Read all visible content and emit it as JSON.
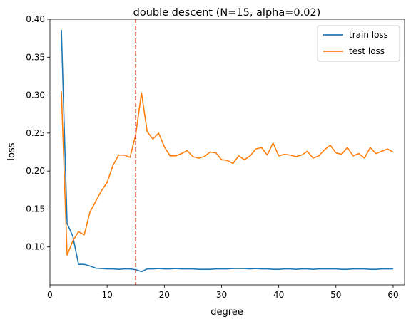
{
  "chart_data": {
    "type": "line",
    "title": "double descent (N=15, alpha=0.02)",
    "xlabel": "degree",
    "ylabel": "loss",
    "xlim": [
      0,
      62
    ],
    "ylim": [
      0.05,
      0.4
    ],
    "xticks": [
      0,
      10,
      20,
      30,
      40,
      50,
      60
    ],
    "yticks": [
      0.1,
      0.15,
      0.2,
      0.25,
      0.3,
      0.35,
      0.4
    ],
    "ytick_labels": [
      "0.10",
      "0.15",
      "0.20",
      "0.25",
      "0.30",
      "0.35",
      "0.40"
    ],
    "grid": false,
    "legend_position": "top-right",
    "vline": {
      "x": 15,
      "color": "#d62728",
      "style": "dashed"
    },
    "x": [
      2,
      3,
      4,
      5,
      6,
      7,
      8,
      9,
      10,
      11,
      12,
      13,
      14,
      15,
      16,
      17,
      18,
      19,
      20,
      21,
      22,
      23,
      24,
      25,
      26,
      27,
      28,
      29,
      30,
      31,
      32,
      33,
      34,
      35,
      36,
      37,
      38,
      39,
      40,
      41,
      42,
      43,
      44,
      45,
      46,
      47,
      48,
      49,
      50,
      51,
      52,
      53,
      54,
      55,
      56,
      57,
      58,
      59,
      60
    ],
    "series": [
      {
        "name": "train loss",
        "color": "#1f77b4",
        "values": [
          0.386,
          0.131,
          0.114,
          0.077,
          0.077,
          0.075,
          0.072,
          0.0715,
          0.071,
          0.071,
          0.0705,
          0.071,
          0.071,
          0.07,
          0.0675,
          0.071,
          0.071,
          0.0715,
          0.071,
          0.071,
          0.0715,
          0.071,
          0.071,
          0.071,
          0.0705,
          0.0705,
          0.0705,
          0.071,
          0.071,
          0.071,
          0.0715,
          0.0715,
          0.0715,
          0.071,
          0.0715,
          0.071,
          0.071,
          0.0705,
          0.0705,
          0.071,
          0.071,
          0.0705,
          0.071,
          0.071,
          0.0705,
          0.071,
          0.071,
          0.071,
          0.071,
          0.0705,
          0.0705,
          0.071,
          0.071,
          0.071,
          0.0705,
          0.0705,
          0.071,
          0.071,
          0.071
        ]
      },
      {
        "name": "test loss",
        "color": "#ff7f0e",
        "values": [
          0.305,
          0.089,
          0.108,
          0.12,
          0.116,
          0.146,
          0.16,
          0.174,
          0.185,
          0.207,
          0.221,
          0.221,
          0.218,
          0.248,
          0.303,
          0.252,
          0.242,
          0.25,
          0.232,
          0.22,
          0.22,
          0.223,
          0.227,
          0.219,
          0.217,
          0.219,
          0.225,
          0.224,
          0.215,
          0.214,
          0.21,
          0.22,
          0.215,
          0.22,
          0.229,
          0.231,
          0.221,
          0.237,
          0.22,
          0.222,
          0.221,
          0.219,
          0.221,
          0.226,
          0.217,
          0.22,
          0.228,
          0.234,
          0.224,
          0.222,
          0.231,
          0.22,
          0.223,
          0.217,
          0.231,
          0.223,
          0.226,
          0.229,
          0.225
        ]
      }
    ]
  }
}
